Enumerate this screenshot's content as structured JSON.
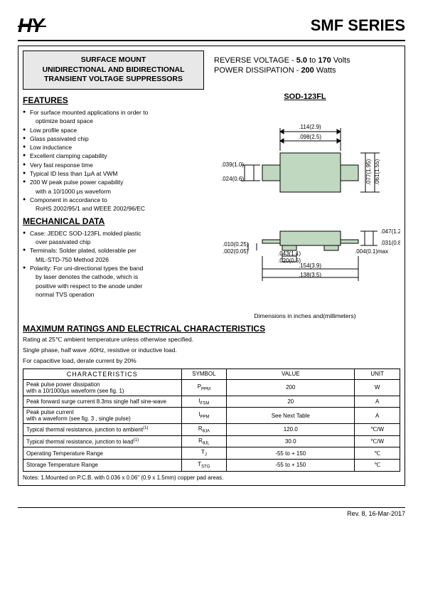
{
  "header": {
    "logo": "HY",
    "series": "SMF SERIES"
  },
  "titleBox": {
    "l1": "SURFACE MOUNT",
    "l2": "UNIDIRECTIONAL AND BIDIRECTIONAL",
    "l3": "TRANSIENT VOLTAGE  SUPPRESSORS"
  },
  "specs": {
    "l1a": "REVERSE VOLTAGE    -  ",
    "l1b": "5.0",
    "l1c": " to ",
    "l1d": "170",
    "l1e": " Volts",
    "l2a": "POWER DISSIPATION  - ",
    "l2b": "200",
    "l2c": " Watts"
  },
  "features": {
    "h": "FEATURES",
    "items": [
      "For surface mounted applications in order to",
      "optimize board space",
      "Low profile space",
      "Glass passivated chip",
      "Low inductance",
      "Excellent clamping capability",
      "Very fast response time",
      "Typical ID less than 1μA at VWM",
      "200 W peak pulse power capability",
      "with a 10/1000 μs waveform",
      "Component in accordance to",
      "RoHS 2002/95/1 and WEEE 2002/96/EC"
    ]
  },
  "mechanical": {
    "h": "MECHANICAL  DATA",
    "items": [
      "Case: JEDEC SOD-123FL molded plastic",
      "over passivated chip",
      "Terminals: Solder plated, solderable per",
      "MIL-STD-750 Method 2026",
      "Polarity: For uni-directional types the band",
      "by laser denotes the cathode, which is",
      "positive with respect to the anode under",
      "normal TVS operation"
    ]
  },
  "package": "SOD-123FL",
  "dims": {
    "d1": ".114(2.9)",
    "d2": ".098(2.5)",
    "d3": ".039(1.0)",
    "d4": ".024(0.6)",
    "d5": ".077(1.95)",
    "d6": ".061(1.55)",
    "d7": ".047(1.2)",
    "d8": ".031(0.8)",
    "d9": ".010(0.25)",
    "d10": ".002(0.05)",
    "d11": ".043(1.1)",
    "d12": ".020(0.5)",
    "d13": ".004(0.1)max",
    "d14": ".154(3.9)",
    "d15": ".138(3.5)",
    "caption": "Dimensions in inches and(millimeters)"
  },
  "maxRatings": {
    "h": "MAXIMUM RATINGS AND ELECTRICAL CHARACTERISTICS",
    "n1": "Rating at 25℃ ambient temperature unless otherwise specified.",
    "n2": "Single phase, half wave ,60Hz, resistive or inductive load.",
    "n3": "For capacitive load, derate current by 20%"
  },
  "table": {
    "hChar": "CHARACTERISTICS",
    "hSym": "SYMBOL",
    "hVal": "VALUE",
    "hUnit": "UNIT",
    "rows": [
      {
        "c": "Peak pulse power dissipation\nwith a 10/1000μs waveform (see fig. 1)",
        "s": "P",
        "ss": "PPM",
        "v": "200",
        "u": "W"
      },
      {
        "c": "Peak forward surge current 8.3ms single half sine-wave",
        "s": "I",
        "ss": "FSM",
        "v": "20",
        "u": "A"
      },
      {
        "c": "Peak pulse current\nwith a waveform (see fig. 3 , single pulse)",
        "s": "I",
        "ss": "PPM",
        "v": "See Next Table",
        "u": "A"
      },
      {
        "c": "Typical thermal resistance, junction to ambient",
        "sup": "(1)",
        "s": "R",
        "ss": "θJA",
        "v": "120.0",
        "u": "℃/W"
      },
      {
        "c": "Typical thermal resistance, junction to lead",
        "sup": "(1)",
        "s": "R",
        "ss": "θJL",
        "v": "30.0",
        "u": "℃/W"
      },
      {
        "c": "Operating Temperature Range",
        "s": "T",
        "ss": "J",
        "v": "-55 to + 150",
        "u": "℃"
      },
      {
        "c": "Storage Temperature Range",
        "s": "T",
        "ss": "STG",
        "v": "-55 to + 150",
        "u": "℃"
      }
    ]
  },
  "notes": "Notes: 1.Mounted on P.C.B. with 0.036 x 0.06\" (0.9 x 1.5mm) copper pad areas.",
  "rev": "Rev. 8, 16-Mar-2017",
  "colors": {
    "fill": "#c0d8c0",
    "line": "#000"
  }
}
